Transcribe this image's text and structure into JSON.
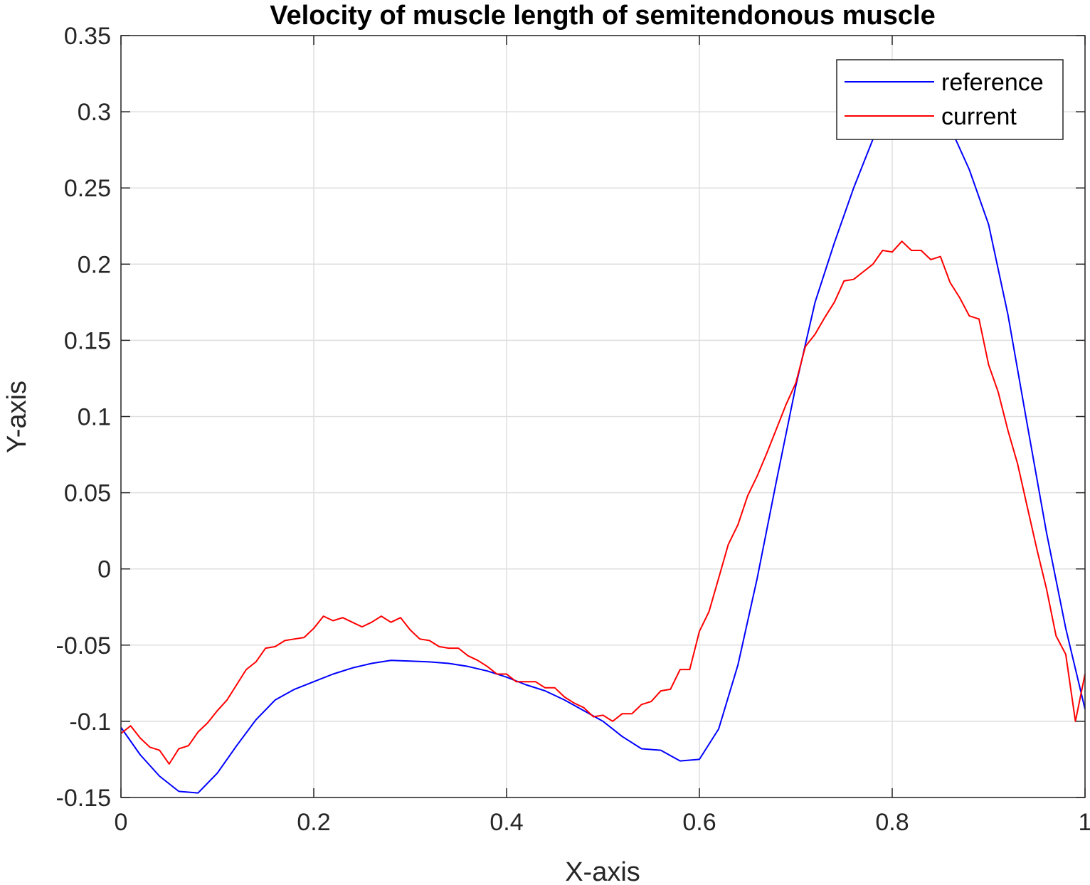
{
  "chart_data": {
    "type": "line",
    "title": "Velocity of muscle length of semitendonous muscle",
    "xlabel": "X-axis",
    "ylabel": "Y-axis",
    "xlim": [
      0,
      1
    ],
    "ylim": [
      -0.15,
      0.35
    ],
    "xticks": [
      0,
      0.2,
      0.4,
      0.6,
      0.8,
      1
    ],
    "xtick_labels": [
      "0",
      "0.2",
      "0.4",
      "0.6",
      "0.8",
      "1"
    ],
    "yticks": [
      -0.15,
      -0.1,
      -0.05,
      0,
      0.05,
      0.1,
      0.15,
      0.2,
      0.25,
      0.3,
      0.35
    ],
    "ytick_labels": [
      "-0.15",
      "-0.1",
      "-0.05",
      "0",
      "0.05",
      "0.1",
      "0.15",
      "0.2",
      "0.25",
      "0.3",
      "0.35"
    ],
    "grid": true,
    "legend_position": "top-right",
    "series": [
      {
        "name": "reference",
        "color": "#0000ff",
        "x": [
          0,
          0.02,
          0.04,
          0.06,
          0.08,
          0.1,
          0.12,
          0.14,
          0.16,
          0.18,
          0.2,
          0.22,
          0.24,
          0.26,
          0.28,
          0.3,
          0.32,
          0.34,
          0.36,
          0.38,
          0.4,
          0.42,
          0.44,
          0.46,
          0.48,
          0.5,
          0.52,
          0.54,
          0.56,
          0.58,
          0.6,
          0.62,
          0.64,
          0.66,
          0.68,
          0.7,
          0.72,
          0.74,
          0.76,
          0.78,
          0.8,
          0.82,
          0.84,
          0.86,
          0.88,
          0.9,
          0.92,
          0.94,
          0.96,
          0.98,
          1
        ],
        "values": [
          -0.104,
          -0.122,
          -0.136,
          -0.146,
          -0.147,
          -0.134,
          -0.116,
          -0.099,
          -0.086,
          -0.079,
          -0.074,
          -0.069,
          -0.065,
          -0.062,
          -0.06,
          -0.0605,
          -0.061,
          -0.062,
          -0.064,
          -0.067,
          -0.071,
          -0.076,
          -0.08,
          -0.086,
          -0.093,
          -0.1,
          -0.11,
          -0.118,
          -0.119,
          -0.126,
          -0.125,
          -0.105,
          -0.063,
          -0.006,
          0.058,
          0.12,
          0.175,
          0.214,
          0.25,
          0.282,
          0.312,
          0.325,
          0.315,
          0.29,
          0.262,
          0.226,
          0.167,
          0.095,
          0.024,
          -0.039,
          -0.092
        ]
      },
      {
        "name": "current",
        "color": "#ff0000",
        "x": [
          0,
          0.01,
          0.02,
          0.03,
          0.04,
          0.05,
          0.06,
          0.07,
          0.08,
          0.09,
          0.1,
          0.11,
          0.12,
          0.13,
          0.14,
          0.15,
          0.16,
          0.17,
          0.18,
          0.19,
          0.2,
          0.21,
          0.22,
          0.23,
          0.24,
          0.25,
          0.26,
          0.27,
          0.28,
          0.29,
          0.3,
          0.31,
          0.32,
          0.33,
          0.34,
          0.35,
          0.36,
          0.37,
          0.38,
          0.39,
          0.4,
          0.41,
          0.42,
          0.43,
          0.44,
          0.45,
          0.46,
          0.47,
          0.48,
          0.49,
          0.5,
          0.51,
          0.52,
          0.53,
          0.54,
          0.55,
          0.56,
          0.57,
          0.58,
          0.59,
          0.6,
          0.61,
          0.62,
          0.63,
          0.64,
          0.65,
          0.66,
          0.67,
          0.68,
          0.69,
          0.7,
          0.71,
          0.72,
          0.73,
          0.74,
          0.75,
          0.76,
          0.77,
          0.78,
          0.79,
          0.8,
          0.81,
          0.82,
          0.83,
          0.84,
          0.85,
          0.86,
          0.87,
          0.88,
          0.89,
          0.9,
          0.91,
          0.92,
          0.93,
          0.94,
          0.95,
          0.96,
          0.97,
          0.98,
          0.99,
          1
        ],
        "values": [
          -0.108,
          -0.103,
          -0.111,
          -0.117,
          -0.119,
          -0.128,
          -0.118,
          -0.116,
          -0.107,
          -0.101,
          -0.093,
          -0.086,
          -0.076,
          -0.066,
          -0.061,
          -0.052,
          -0.051,
          -0.047,
          -0.046,
          -0.045,
          -0.039,
          -0.031,
          -0.034,
          -0.032,
          -0.035,
          -0.038,
          -0.035,
          -0.031,
          -0.035,
          -0.032,
          -0.04,
          -0.046,
          -0.047,
          -0.051,
          -0.052,
          -0.052,
          -0.057,
          -0.06,
          -0.064,
          -0.069,
          -0.069,
          -0.074,
          -0.074,
          -0.074,
          -0.078,
          -0.078,
          -0.084,
          -0.088,
          -0.091,
          -0.097,
          -0.096,
          -0.1,
          -0.095,
          -0.095,
          -0.089,
          -0.087,
          -0.08,
          -0.079,
          -0.066,
          -0.066,
          -0.041,
          -0.028,
          -0.006,
          0.016,
          0.029,
          0.048,
          0.061,
          0.076,
          0.092,
          0.108,
          0.122,
          0.146,
          0.154,
          0.165,
          0.175,
          0.189,
          0.19,
          0.195,
          0.2,
          0.209,
          0.208,
          0.215,
          0.209,
          0.209,
          0.203,
          0.205,
          0.188,
          0.178,
          0.166,
          0.164,
          0.134,
          0.116,
          0.091,
          0.069,
          0.041,
          0.013,
          -0.013,
          -0.044,
          -0.056,
          -0.1,
          -0.069
        ]
      }
    ]
  }
}
